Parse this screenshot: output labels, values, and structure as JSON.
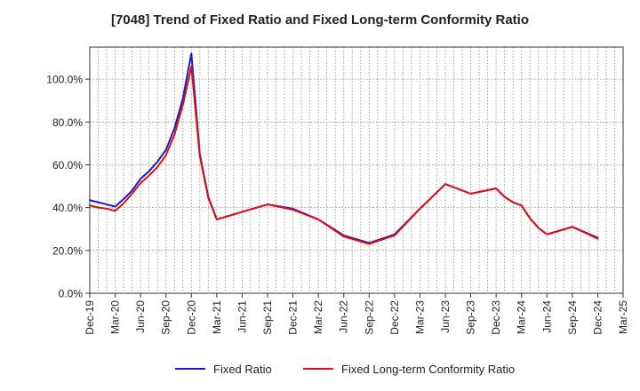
{
  "chart_data": {
    "type": "line",
    "title": "[7048]  Trend of Fixed Ratio and Fixed Long-term Conformity Ratio",
    "xlabel": "",
    "ylabel": "",
    "ylim": [
      0,
      115
    ],
    "yticks": [
      0,
      20,
      40,
      60,
      80,
      100
    ],
    "ytick_labels": [
      "0.0%",
      "20.0%",
      "40.0%",
      "60.0%",
      "80.0%",
      "100.0%"
    ],
    "x_tick_labels": [
      "Dec-19",
      "Mar-20",
      "Jun-20",
      "Sep-20",
      "Dec-20",
      "Mar-21",
      "Jun-21",
      "Sep-21",
      "Dec-21",
      "Mar-22",
      "Jun-22",
      "Sep-22",
      "Dec-22",
      "Mar-23",
      "Jun-23",
      "Sep-23",
      "Dec-23",
      "Mar-24",
      "Jun-24",
      "Sep-24",
      "Dec-24",
      "Mar-25"
    ],
    "x": [
      "2019-12",
      "2020-01",
      "2020-02",
      "2020-03",
      "2020-04",
      "2020-05",
      "2020-06",
      "2020-07",
      "2020-08",
      "2020-09",
      "2020-10",
      "2020-11",
      "2020-12",
      "2021-01",
      "2021-02",
      "2021-03",
      "2021-06",
      "2021-09",
      "2021-12",
      "2022-03",
      "2022-06",
      "2022-09",
      "2022-12",
      "2023-03",
      "2023-06",
      "2023-09",
      "2023-12",
      "2024-01",
      "2024-02",
      "2024-03",
      "2024-04",
      "2024-05",
      "2024-06",
      "2024-09",
      "2024-12"
    ],
    "grid": true,
    "legend_position": "bottom",
    "series": [
      {
        "name": "Fixed Ratio",
        "color": "#1a1acc",
        "values": [
          43.5,
          42.5,
          41.5,
          40.5,
          44,
          48,
          53.5,
          57,
          61.5,
          67,
          77,
          91,
          112,
          65,
          45,
          34.5,
          38,
          41.5,
          39.5,
          34.5,
          27,
          23.5,
          27.5,
          39.5,
          51,
          46.5,
          49,
          45,
          42.5,
          41,
          35,
          30.5,
          27.5,
          31,
          26
        ]
      },
      {
        "name": "Fixed Long-term Conformity Ratio",
        "color": "#dd1111",
        "values": [
          41,
          40,
          39.5,
          38.5,
          42,
          46.5,
          51.5,
          55,
          59,
          64.5,
          74,
          88,
          106,
          64,
          44.5,
          34.5,
          38,
          41.5,
          39,
          34.5,
          26.5,
          23,
          27,
          39.5,
          51,
          46.5,
          49,
          45,
          42.5,
          41,
          35,
          30.5,
          27.5,
          31,
          25.5
        ]
      }
    ]
  }
}
